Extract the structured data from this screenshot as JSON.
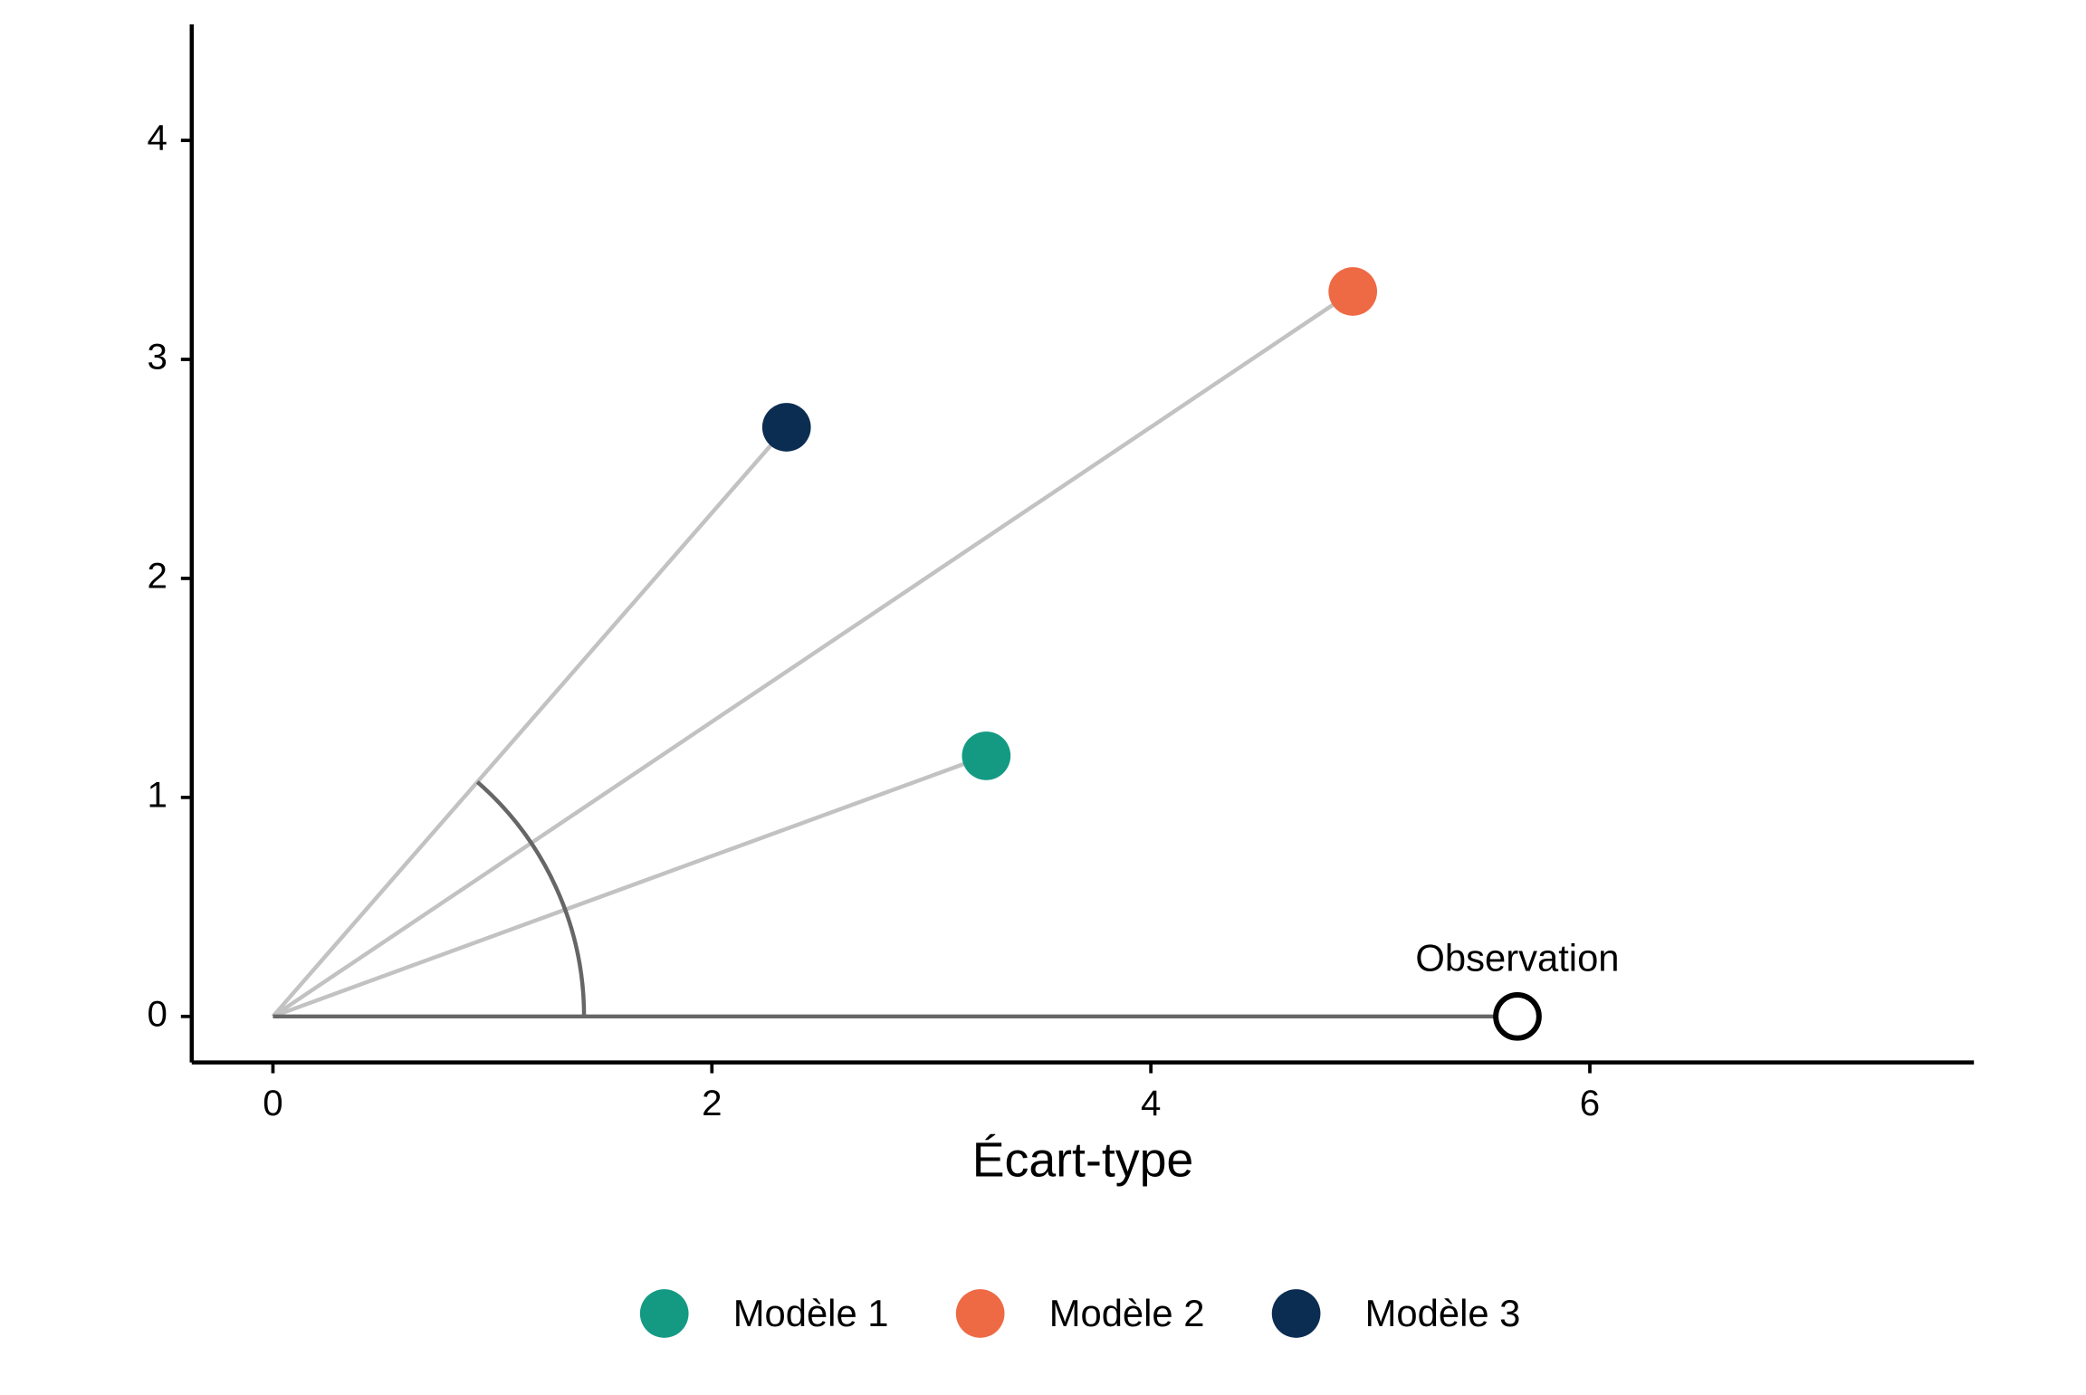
{
  "chart_data": {
    "type": "scatter",
    "xlabel": "Écart-type",
    "xlim": [
      -0.37,
      7.75
    ],
    "ylim": [
      -0.21,
      4.53
    ],
    "xticks": [
      0,
      2,
      4,
      6
    ],
    "yticks": [
      0,
      1,
      2,
      3,
      4
    ],
    "series": [
      {
        "name": "Modèle 1",
        "color": "#149a83",
        "x": [
          3.25
        ],
        "y": [
          1.19
        ]
      },
      {
        "name": "Modèle 2",
        "color": "#ee6a45",
        "x": [
          4.92
        ],
        "y": [
          3.31
        ]
      },
      {
        "name": "Modèle 3",
        "color": "#0c2d52",
        "x": [
          2.34
        ],
        "y": [
          2.69
        ]
      }
    ],
    "observation": {
      "label": "Observation",
      "x": 5.67,
      "y": 0
    },
    "legend": "bottom"
  }
}
